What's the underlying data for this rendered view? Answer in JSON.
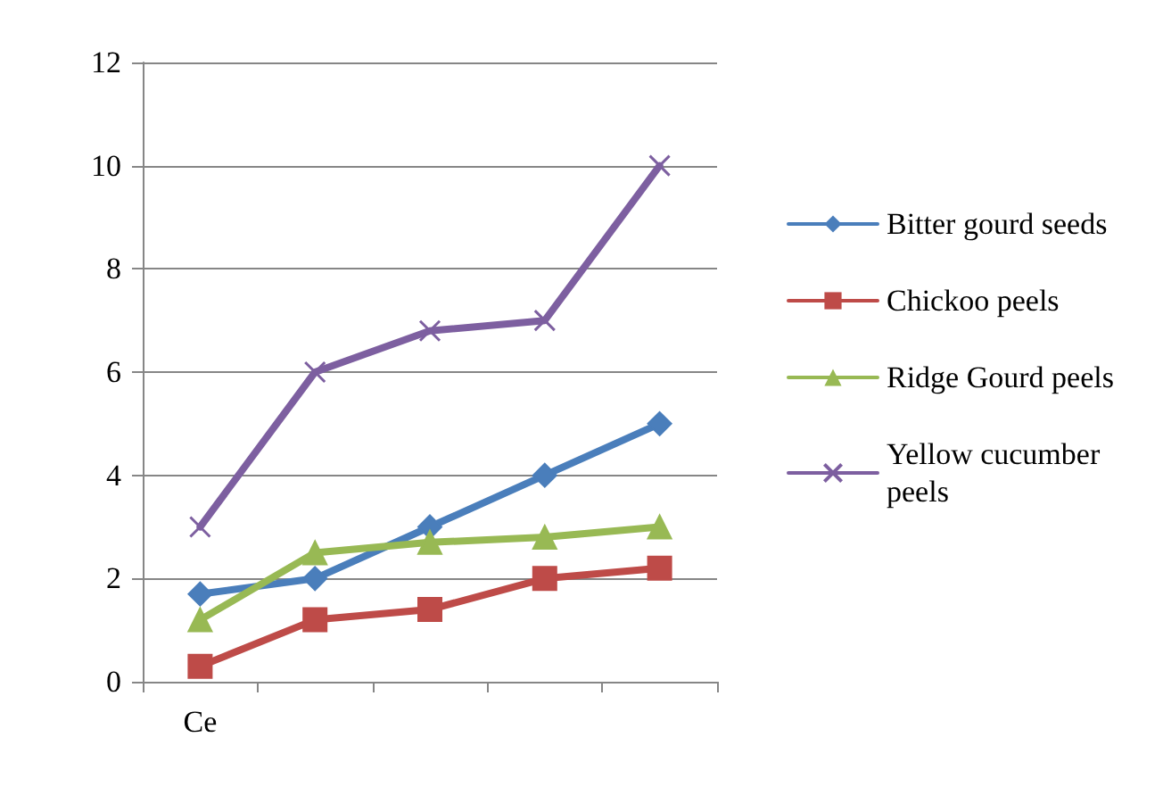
{
  "chart_data": {
    "type": "line",
    "categories": [
      "Ce",
      null,
      null,
      null,
      null
    ],
    "series": [
      {
        "name": "Bitter gourd seeds",
        "color": "#4a7ebb",
        "marker": "diamond",
        "values": [
          1.7,
          2.0,
          3.0,
          4.0,
          5.0
        ]
      },
      {
        "name": "Chickoo peels",
        "color": "#be4b48",
        "marker": "square",
        "values": [
          0.3,
          1.2,
          1.4,
          2.0,
          2.2
        ]
      },
      {
        "name": "Ridge Gourd peels",
        "color": "#98b954",
        "marker": "triangle",
        "values": [
          1.2,
          2.5,
          2.7,
          2.8,
          3.0
        ]
      },
      {
        "name": "Yellow cucumber peels",
        "color": "#7d5fa0",
        "marker": "cross",
        "values": [
          3.0,
          6.0,
          6.8,
          7.0,
          10.0
        ]
      }
    ],
    "ylim": [
      0,
      12
    ],
    "yticks": [
      0,
      2,
      4,
      6,
      8,
      10,
      12
    ],
    "grid": "y",
    "legend": "right",
    "line_style": "solid"
  }
}
